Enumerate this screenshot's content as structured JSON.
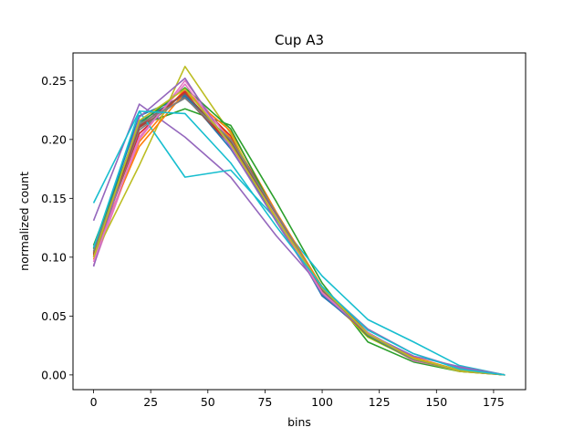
{
  "chart_data": {
    "type": "line",
    "title": "Cup A3",
    "xlabel": "bins",
    "ylabel": "normalized count",
    "xlim": [
      -9,
      189
    ],
    "ylim": [
      -0.0125,
      0.2735
    ],
    "x_ticks": [
      0,
      25,
      50,
      75,
      100,
      125,
      150,
      175
    ],
    "y_ticks": [
      0.0,
      0.05,
      0.1,
      0.15,
      0.2,
      0.25
    ],
    "x_tick_labels": [
      "0",
      "25",
      "50",
      "75",
      "100",
      "125",
      "150",
      "175"
    ],
    "y_tick_labels": [
      "0.00",
      "0.05",
      "0.10",
      "0.15",
      "0.20",
      "0.25"
    ],
    "grid": false,
    "legend": "none",
    "x": [
      0,
      20,
      40,
      60,
      80,
      100,
      120,
      140,
      160,
      180
    ],
    "series": [
      {
        "color": "#1f77b4",
        "values": [
          0.105,
          0.215,
          0.238,
          0.192,
          0.133,
          0.068,
          0.034,
          0.013,
          0.004,
          0.0
        ]
      },
      {
        "color": "#ff7f0e",
        "values": [
          0.098,
          0.198,
          0.243,
          0.201,
          0.137,
          0.072,
          0.033,
          0.014,
          0.003,
          0.0
        ]
      },
      {
        "color": "#2ca02c",
        "values": [
          0.11,
          0.212,
          0.226,
          0.212,
          0.147,
          0.078,
          0.028,
          0.011,
          0.003,
          0.0
        ]
      },
      {
        "color": "#d62728",
        "values": [
          0.102,
          0.205,
          0.241,
          0.203,
          0.136,
          0.07,
          0.033,
          0.013,
          0.004,
          0.0
        ]
      },
      {
        "color": "#9467bd",
        "values": [
          0.131,
          0.23,
          0.202,
          0.168,
          0.118,
          0.074,
          0.039,
          0.018,
          0.006,
          0.0
        ]
      },
      {
        "color": "#8c564b",
        "values": [
          0.104,
          0.21,
          0.236,
          0.195,
          0.137,
          0.074,
          0.036,
          0.014,
          0.004,
          0.0
        ]
      },
      {
        "color": "#e377c2",
        "values": [
          0.093,
          0.2,
          0.25,
          0.198,
          0.133,
          0.071,
          0.034,
          0.012,
          0.004,
          0.0
        ]
      },
      {
        "color": "#7f7f7f",
        "values": [
          0.1,
          0.208,
          0.237,
          0.197,
          0.137,
          0.073,
          0.035,
          0.013,
          0.004,
          0.0
        ]
      },
      {
        "color": "#bcbd22",
        "values": [
          0.1,
          0.178,
          0.262,
          0.205,
          0.13,
          0.071,
          0.032,
          0.013,
          0.003,
          0.0
        ]
      },
      {
        "color": "#17becf",
        "values": [
          0.146,
          0.224,
          0.168,
          0.174,
          0.132,
          0.084,
          0.047,
          0.028,
          0.008,
          0.0
        ]
      },
      {
        "color": "#1f77b4",
        "values": [
          0.108,
          0.22,
          0.237,
          0.198,
          0.136,
          0.067,
          0.036,
          0.014,
          0.004,
          0.0
        ]
      },
      {
        "color": "#ff7f0e",
        "values": [
          0.104,
          0.194,
          0.24,
          0.207,
          0.138,
          0.075,
          0.034,
          0.015,
          0.004,
          0.0
        ]
      },
      {
        "color": "#2ca02c",
        "values": [
          0.107,
          0.213,
          0.244,
          0.209,
          0.135,
          0.073,
          0.033,
          0.013,
          0.004,
          0.0
        ]
      },
      {
        "color": "#d62728",
        "values": [
          0.101,
          0.211,
          0.24,
          0.195,
          0.134,
          0.07,
          0.034,
          0.014,
          0.004,
          0.0
        ]
      },
      {
        "color": "#9467bd",
        "values": [
          0.092,
          0.219,
          0.252,
          0.193,
          0.13,
          0.069,
          0.035,
          0.016,
          0.007,
          0.0
        ]
      },
      {
        "color": "#8c564b",
        "values": [
          0.103,
          0.212,
          0.239,
          0.198,
          0.136,
          0.072,
          0.035,
          0.013,
          0.004,
          0.0
        ]
      },
      {
        "color": "#e377c2",
        "values": [
          0.096,
          0.202,
          0.247,
          0.195,
          0.134,
          0.07,
          0.036,
          0.013,
          0.004,
          0.0
        ]
      },
      {
        "color": "#7f7f7f",
        "values": [
          0.105,
          0.213,
          0.235,
          0.2,
          0.137,
          0.073,
          0.034,
          0.013,
          0.004,
          0.0
        ]
      },
      {
        "color": "#bcbd22",
        "values": [
          0.1,
          0.216,
          0.243,
          0.196,
          0.133,
          0.074,
          0.035,
          0.014,
          0.004,
          0.0
        ]
      },
      {
        "color": "#17becf",
        "values": [
          0.108,
          0.224,
          0.222,
          0.18,
          0.126,
          0.075,
          0.038,
          0.018,
          0.005,
          0.0
        ]
      }
    ]
  }
}
